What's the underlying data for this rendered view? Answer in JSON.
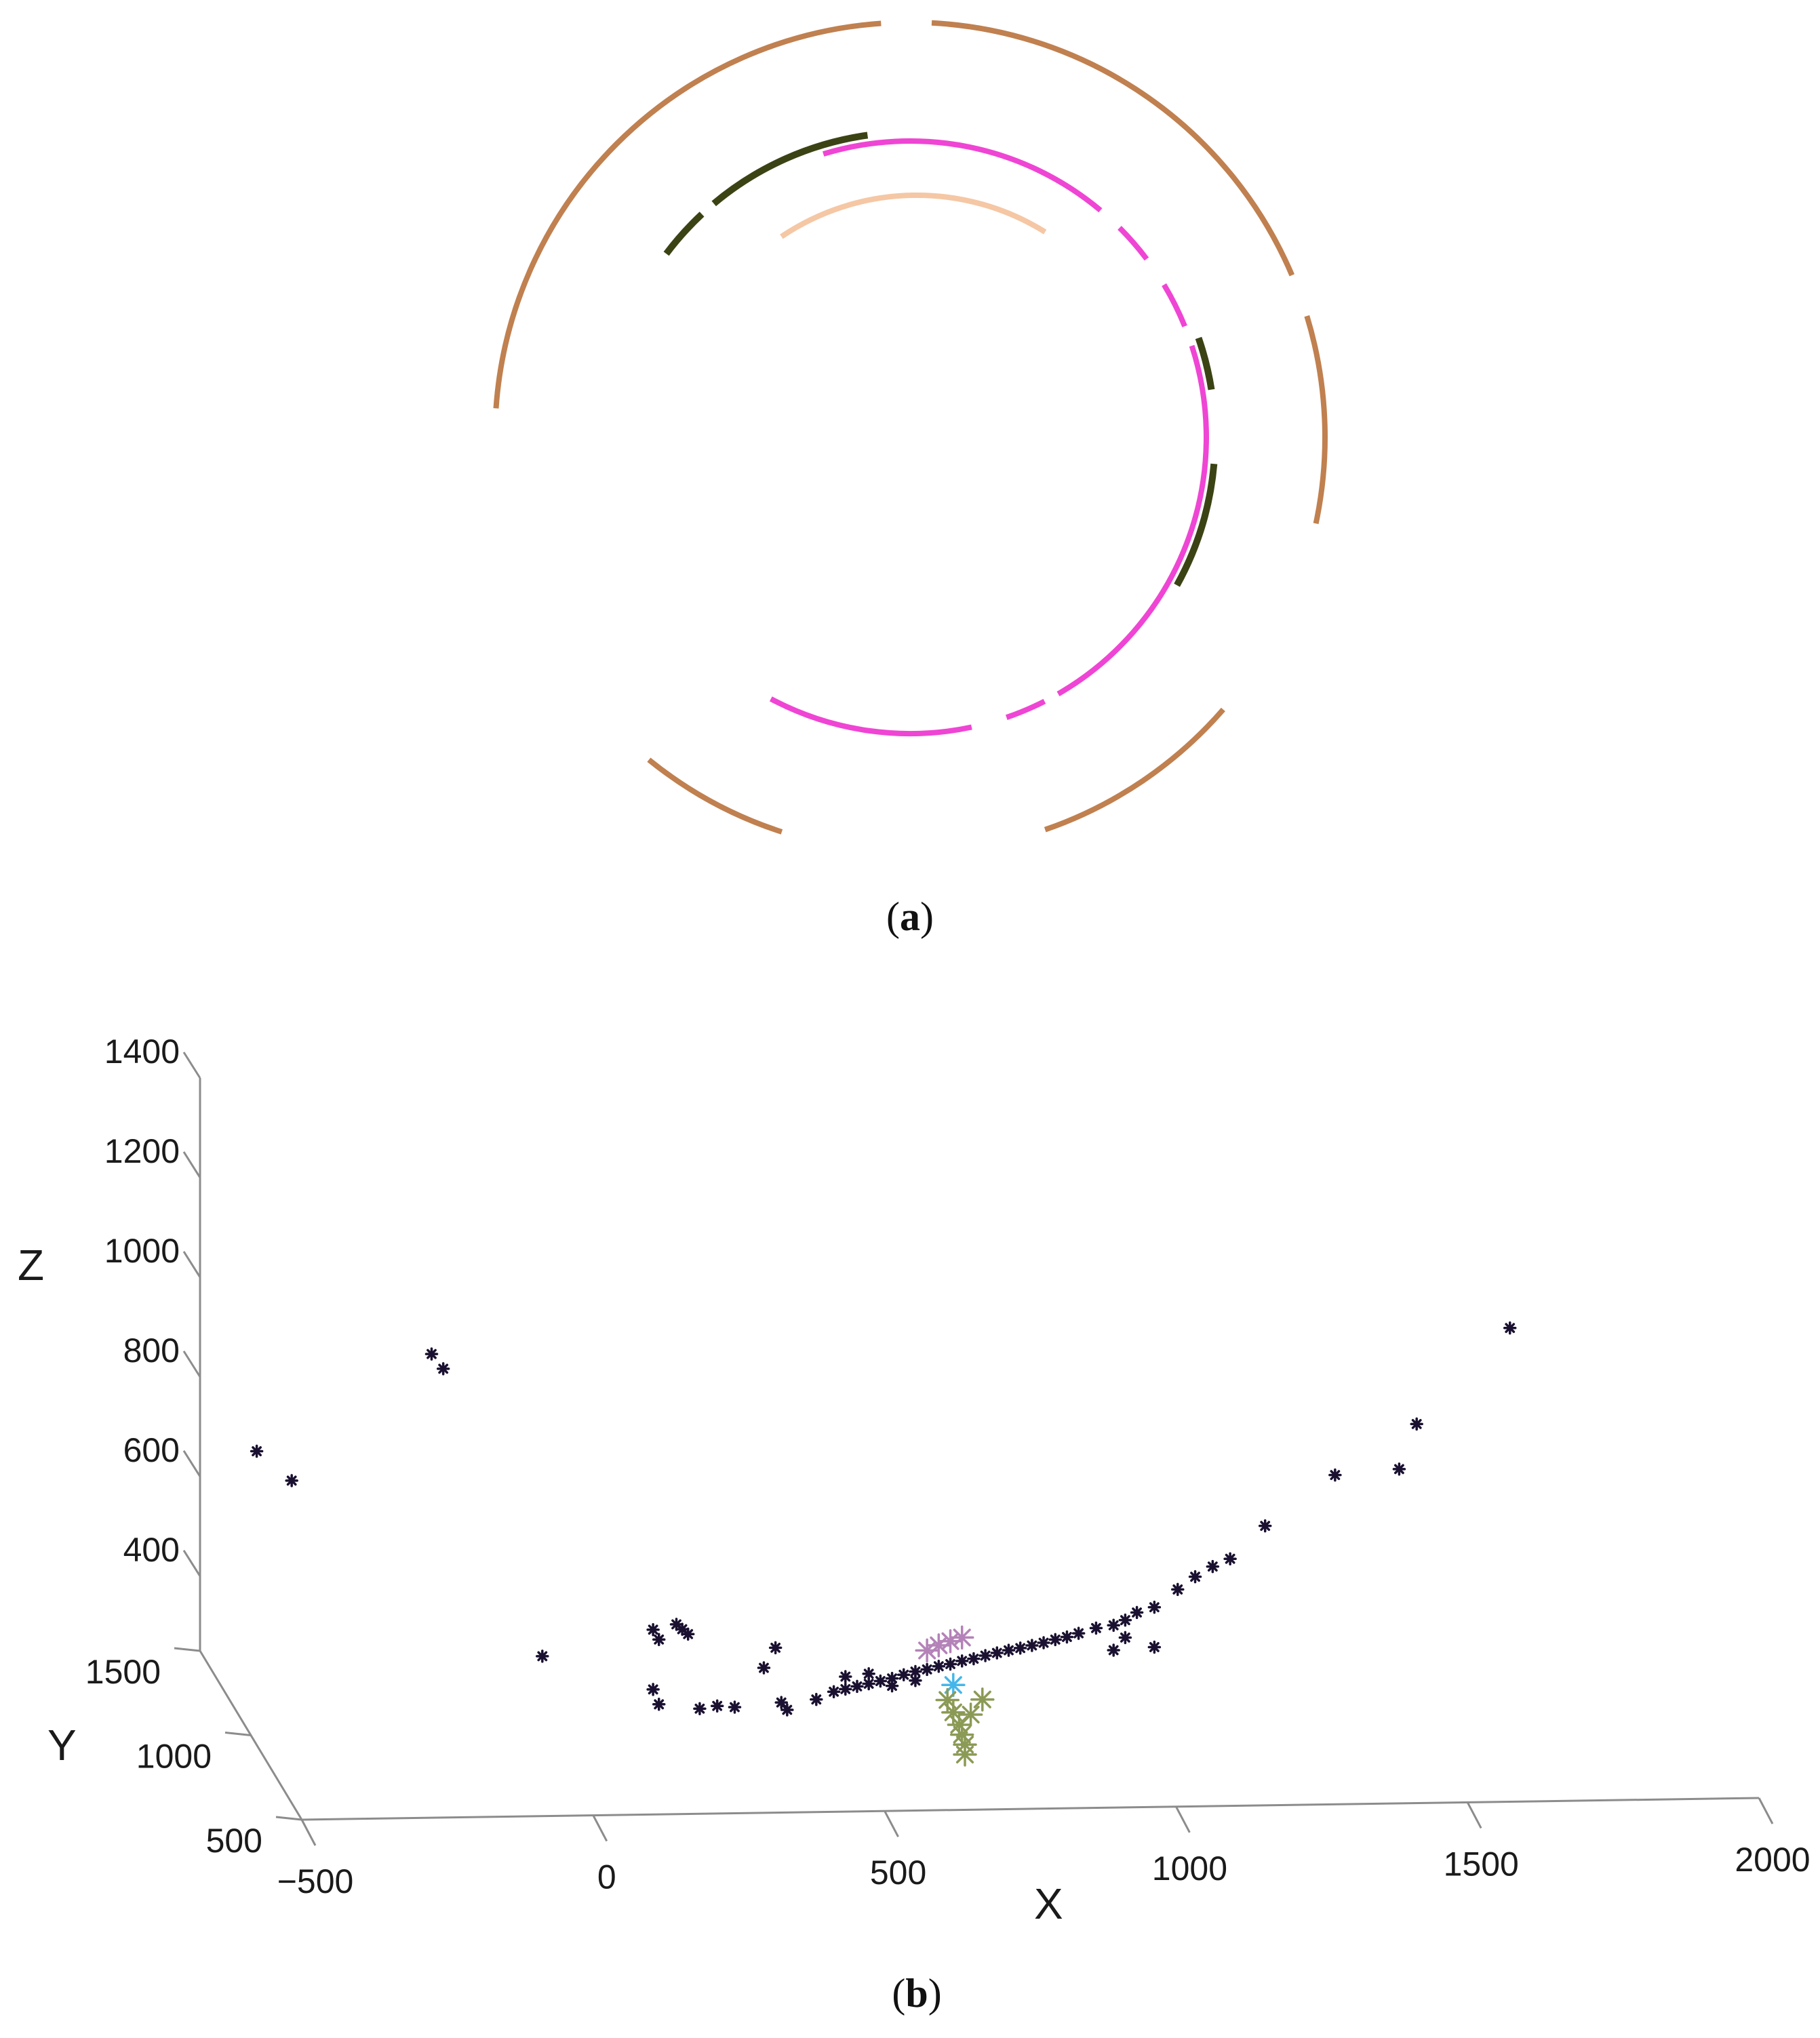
{
  "figure": {
    "panel_a": {
      "label_open": "(",
      "label_letter": "a",
      "label_close": ")"
    },
    "panel_b": {
      "label_open": "(",
      "label_letter": "b",
      "label_close": ")",
      "axis_names": {
        "x": "X",
        "y": "Y",
        "z": "Z"
      }
    }
  },
  "chart_data": [
    {
      "type": "arc-segments",
      "panel": "a",
      "title": "",
      "series": [
        {
          "name": "",
          "color": "#c0804f",
          "ring": "outer",
          "arcs": [
            [
              -176,
              -94
            ],
            [
              -87,
              -23
            ],
            [
              -17,
              12
            ],
            [
              41,
              71
            ],
            [
              108,
              129
            ]
          ]
        },
        {
          "name": "",
          "color": "#f5c7a4",
          "ring": "innermost",
          "arcs": [
            [
              -124,
              -58
            ]
          ]
        },
        {
          "name": "",
          "color": "#ef45d4",
          "ring": "middle",
          "arcs": [
            [
              -107,
              -50
            ],
            [
              -45,
              -37
            ],
            [
              -31,
              -22
            ],
            [
              -18,
              60
            ],
            [
              63,
              71
            ],
            [
              78,
              118
            ]
          ]
        },
        {
          "name": "",
          "color": "#3b4314",
          "ring": "between",
          "arcs": [
            [
              -143,
              -133
            ],
            [
              -130,
              -98
            ],
            [
              -19,
              -9
            ],
            [
              5,
              29
            ]
          ]
        }
      ]
    },
    {
      "type": "scatter3d",
      "panel": "b",
      "title": "",
      "xlabel": "X",
      "ylabel": "Y",
      "zlabel": "Z",
      "xticks": [
        -500,
        0,
        500,
        1000,
        1500,
        2000
      ],
      "yticks": [
        500,
        1000,
        1500
      ],
      "zticks": [
        400,
        600,
        800,
        1000,
        1200,
        1400
      ],
      "xlim": [
        -500,
        2000
      ],
      "ylim": [
        500,
        1500
      ],
      "zlim": [
        250,
        1400
      ],
      "grid": false,
      "series": [
        {
          "name": "",
          "color": "#1a1030",
          "marker": "*",
          "points": [
            [
              -490,
              1000,
              820
            ],
            [
              -430,
              1000,
              760
            ],
            [
              -190,
              1000,
              1010
            ],
            [
              -170,
              1000,
              980
            ],
            [
              0,
              1000,
              400
            ],
            [
              190,
              1000,
              450
            ],
            [
              200,
              1000,
              430
            ],
            [
              230,
              1000,
              460
            ],
            [
              240,
              1000,
              450
            ],
            [
              250,
              1000,
              440
            ],
            [
              400,
              1000,
              410
            ],
            [
              380,
              1000,
              370
            ],
            [
              190,
              1000,
              330
            ],
            [
              200,
              1000,
              300
            ],
            [
              270,
              1000,
              290
            ],
            [
              300,
              1000,
              295
            ],
            [
              330,
              1000,
              292
            ],
            [
              420,
              1000,
              285
            ],
            [
              410,
              1000,
              300
            ],
            [
              470,
              1000,
              305
            ],
            [
              500,
              1000,
              320
            ],
            [
              520,
              1000,
              325
            ],
            [
              540,
              1000,
              330
            ],
            [
              560,
              1000,
              335
            ],
            [
              580,
              1000,
              340
            ],
            [
              600,
              1000,
              345
            ],
            [
              620,
              1000,
              352
            ],
            [
              640,
              1000,
              358
            ],
            [
              660,
              1000,
              362
            ],
            [
              680,
              1000,
              368
            ],
            [
              700,
              1000,
              372
            ],
            [
              720,
              1000,
              378
            ],
            [
              740,
              1000,
              382
            ],
            [
              760,
              1000,
              388
            ],
            [
              780,
              1000,
              393
            ],
            [
              800,
              1000,
              398
            ],
            [
              820,
              1000,
              402
            ],
            [
              840,
              1000,
              407
            ],
            [
              860,
              1000,
              412
            ],
            [
              880,
              1000,
              418
            ],
            [
              900,
              1000,
              423
            ],
            [
              920,
              1000,
              430
            ],
            [
              950,
              1000,
              440
            ],
            [
              980,
              1000,
              445
            ],
            [
              1000,
              1000,
              455
            ],
            [
              1020,
              1000,
              470
            ],
            [
              1050,
              1000,
              480
            ],
            [
              1090,
              1000,
              515
            ],
            [
              1120,
              1000,
              540
            ],
            [
              1150,
              1000,
              560
            ],
            [
              1180,
              1000,
              575
            ],
            [
              1240,
              1000,
              640
            ],
            [
              1360,
              1000,
              740
            ],
            [
              1500,
              1000,
              840
            ],
            [
              1660,
              1000,
              1030
            ],
            [
              1470,
              1000,
              750
            ],
            [
              1000,
              1000,
              420
            ],
            [
              1050,
              1000,
              400
            ],
            [
              980,
              1000,
              395
            ],
            [
              520,
              1000,
              350
            ],
            [
              560,
              1000,
              355
            ],
            [
              600,
              1000,
              330
            ],
            [
              640,
              1000,
              340
            ]
          ]
        },
        {
          "name": "",
          "color": "#b482b8",
          "marker": "*",
          "points": [
            [
              660,
              1000,
              400
            ],
            [
              680,
              1000,
              410
            ],
            [
              700,
              1000,
              418
            ],
            [
              720,
              1000,
              425
            ]
          ]
        },
        {
          "name": "",
          "color": "#45b6ea",
          "marker": "*",
          "points": [
            [
              705,
              1000,
              330
            ]
          ]
        },
        {
          "name": "",
          "color": "#8b9a55",
          "marker": "*",
          "points": [
            [
              720,
              1000,
              230
            ],
            [
              715,
              1000,
              250
            ],
            [
              705,
              1000,
              275
            ],
            [
              695,
              1000,
              300
            ],
            [
              735,
              1000,
              270
            ],
            [
              755,
              1000,
              300
            ],
            [
              725,
              1000,
              210
            ],
            [
              725,
              1000,
              190
            ]
          ]
        }
      ]
    }
  ]
}
